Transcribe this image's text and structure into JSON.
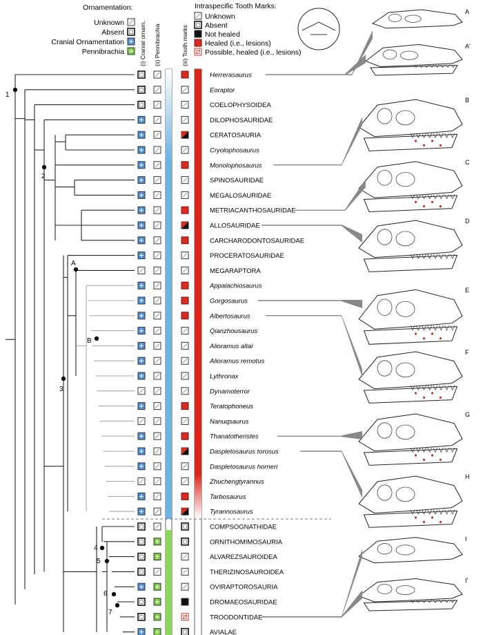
{
  "legend_ornamentation": {
    "title": "Ornamentation:",
    "items": [
      {
        "label": "Unknown",
        "state": "unknown"
      },
      {
        "label": "Absent",
        "state": "absent"
      },
      {
        "label": "Cranial Ornamentation",
        "state": "cranial"
      },
      {
        "label": "Pennibrachia",
        "state": "penni"
      }
    ]
  },
  "legend_tooth": {
    "title": "Intraspecific Tooth Marks:",
    "items": [
      {
        "label": "Unknown",
        "state": "unknown"
      },
      {
        "label": "Absent",
        "state": "absent"
      },
      {
        "label": "Not healed",
        "state": "not_healed"
      },
      {
        "label": "Healed (i.e., lesions)",
        "state": "healed"
      },
      {
        "label": "Possible, healed (i.e., lesions)",
        "state": "possible"
      }
    ]
  },
  "column_headers": {
    "cranial": "(i) Cranial ornam.",
    "penni": "(ii) Pennibrachia",
    "tooth": "(iii) Tooth marks"
  },
  "colors": {
    "cranial": "#4f8fd0",
    "penni": "#7ac943",
    "healed": "#d92b1f",
    "not_healed": "#111111",
    "bar_blue": "#6fb3e0",
    "bar_green": "#8fd45a",
    "bar_red": "#d7261b"
  },
  "taxa": [
    {
      "name": "Herrerasaurus",
      "italic": true,
      "cranial": "absent",
      "penni": "unknown",
      "tooth": "healed"
    },
    {
      "name": "Eoraptor",
      "italic": true,
      "cranial": "absent",
      "penni": "unknown",
      "tooth": "unknown"
    },
    {
      "name": "COELOPHYSOIDEA",
      "italic": false,
      "cranial": "absent",
      "penni": "unknown",
      "tooth": "unknown"
    },
    {
      "name": "DILOPHOSAURIDAE",
      "italic": false,
      "cranial": "cranial",
      "penni": "unknown",
      "tooth": "unknown"
    },
    {
      "name": "CERATOSAURIA",
      "italic": false,
      "cranial": "cranial",
      "penni": "unknown",
      "tooth": "half"
    },
    {
      "name": "Cryolophosaurus",
      "italic": true,
      "cranial": "cranial",
      "penni": "unknown",
      "tooth": "unknown"
    },
    {
      "name": "Monolophosaurus",
      "italic": true,
      "cranial": "cranial",
      "penni": "unknown",
      "tooth": "healed"
    },
    {
      "name": "SPINOSAURIDAE",
      "italic": false,
      "cranial": "cranial",
      "penni": "unknown",
      "tooth": "unknown"
    },
    {
      "name": "MEGALOSAURIDAE",
      "italic": false,
      "cranial": "cranial",
      "penni": "unknown",
      "tooth": "unknown"
    },
    {
      "name": "METRIACANTHOSAURIDAE",
      "italic": false,
      "cranial": "cranial",
      "penni": "unknown",
      "tooth": "healed"
    },
    {
      "name": "ALLOSAURIDAE",
      "italic": false,
      "cranial": "cranial",
      "penni": "unknown",
      "tooth": "half"
    },
    {
      "name": "CARCHARODONTOSAURIDAE",
      "italic": false,
      "cranial": "cranial",
      "penni": "unknown",
      "tooth": "healed"
    },
    {
      "name": "PROCERATOSAURIDAE",
      "italic": false,
      "cranial": "cranial",
      "penni": "unknown",
      "tooth": "unknown"
    },
    {
      "name": "MEGARAPTORA",
      "italic": false,
      "cranial": "unknown",
      "penni": "unknown",
      "tooth": "unknown"
    },
    {
      "name": "Appalachiosaurus",
      "italic": true,
      "cranial": "cranial",
      "penni": "unknown",
      "tooth": "healed"
    },
    {
      "name": "Gorgosaurus",
      "italic": true,
      "cranial": "cranial",
      "penni": "unknown",
      "tooth": "healed"
    },
    {
      "name": "Albertosaurus",
      "italic": true,
      "cranial": "cranial",
      "penni": "unknown",
      "tooth": "healed"
    },
    {
      "name": "Qianzhousaurus",
      "italic": true,
      "cranial": "cranial",
      "penni": "unknown",
      "tooth": "unknown"
    },
    {
      "name": "Alioramus altai",
      "italic": true,
      "cranial": "cranial",
      "penni": "unknown",
      "tooth": "unknown"
    },
    {
      "name": "Alioramus remotus",
      "italic": true,
      "cranial": "cranial",
      "penni": "unknown",
      "tooth": "unknown"
    },
    {
      "name": "Lythronax",
      "italic": true,
      "cranial": "cranial",
      "penni": "unknown",
      "tooth": "unknown"
    },
    {
      "name": "Dynamoterror",
      "italic": true,
      "cranial": "unknown",
      "penni": "unknown",
      "tooth": "unknown"
    },
    {
      "name": "Teratophoneus",
      "italic": true,
      "cranial": "cranial",
      "penni": "unknown",
      "tooth": "healed"
    },
    {
      "name": "Nanuqsaurus",
      "italic": true,
      "cranial": "unknown",
      "penni": "unknown",
      "tooth": "unknown"
    },
    {
      "name": "Thanatotheristes",
      "italic": true,
      "cranial": "cranial",
      "penni": "unknown",
      "tooth": "healed"
    },
    {
      "name": "Daspletosaurus torosus",
      "italic": true,
      "cranial": "cranial",
      "penni": "unknown",
      "tooth": "half"
    },
    {
      "name": "Daspletosaurus horneri",
      "italic": true,
      "cranial": "cranial",
      "penni": "unknown",
      "tooth": "unknown"
    },
    {
      "name": "Zhuchengtyrannus",
      "italic": true,
      "cranial": "unknown",
      "penni": "unknown",
      "tooth": "unknown"
    },
    {
      "name": "Tarbosaurus",
      "italic": true,
      "cranial": "cranial",
      "penni": "unknown",
      "tooth": "healed"
    },
    {
      "name": "Tyrannosaurus",
      "italic": true,
      "cranial": "cranial",
      "penni": "unknown",
      "tooth": "half"
    },
    {
      "name": "COMPSOGNATHIDAE",
      "italic": false,
      "cranial": "absent",
      "penni": "unknown",
      "tooth": "absent"
    },
    {
      "name": "ORNITHOMIMOSAURIA",
      "italic": false,
      "cranial": "absent",
      "penni": "penni",
      "tooth": "absent"
    },
    {
      "name": "ALVAREZSAUROIDEA",
      "italic": false,
      "cranial": "absent",
      "penni": "penni",
      "tooth": "unknown"
    },
    {
      "name": "THERIZINOSAUROIDEA",
      "italic": false,
      "cranial": "absent",
      "penni": "unknown",
      "tooth": "unknown"
    },
    {
      "name": "OVIRAPTOROSAURIA",
      "italic": false,
      "cranial": "cranial",
      "penni": "penni",
      "tooth": "unknown"
    },
    {
      "name": "DROMAEOSAURIDAE",
      "italic": false,
      "cranial": "absent",
      "penni": "penni",
      "tooth": "not_healed"
    },
    {
      "name": "TROODONTIDAE",
      "italic": false,
      "cranial": "absent",
      "penni": "penni",
      "tooth": "possible"
    },
    {
      "name": "AVIALAE",
      "italic": false,
      "cranial": "cranial",
      "penni": "penni",
      "tooth": "absent"
    }
  ],
  "node_labels": [
    "1",
    "2",
    "3",
    "4",
    "5",
    "6",
    "7"
  ],
  "node_label_extra": [
    "A",
    "B"
  ],
  "skull_panels": [
    "A",
    "A'",
    "B",
    "C",
    "D",
    "E",
    "F",
    "G",
    "H",
    "I",
    "I'"
  ]
}
